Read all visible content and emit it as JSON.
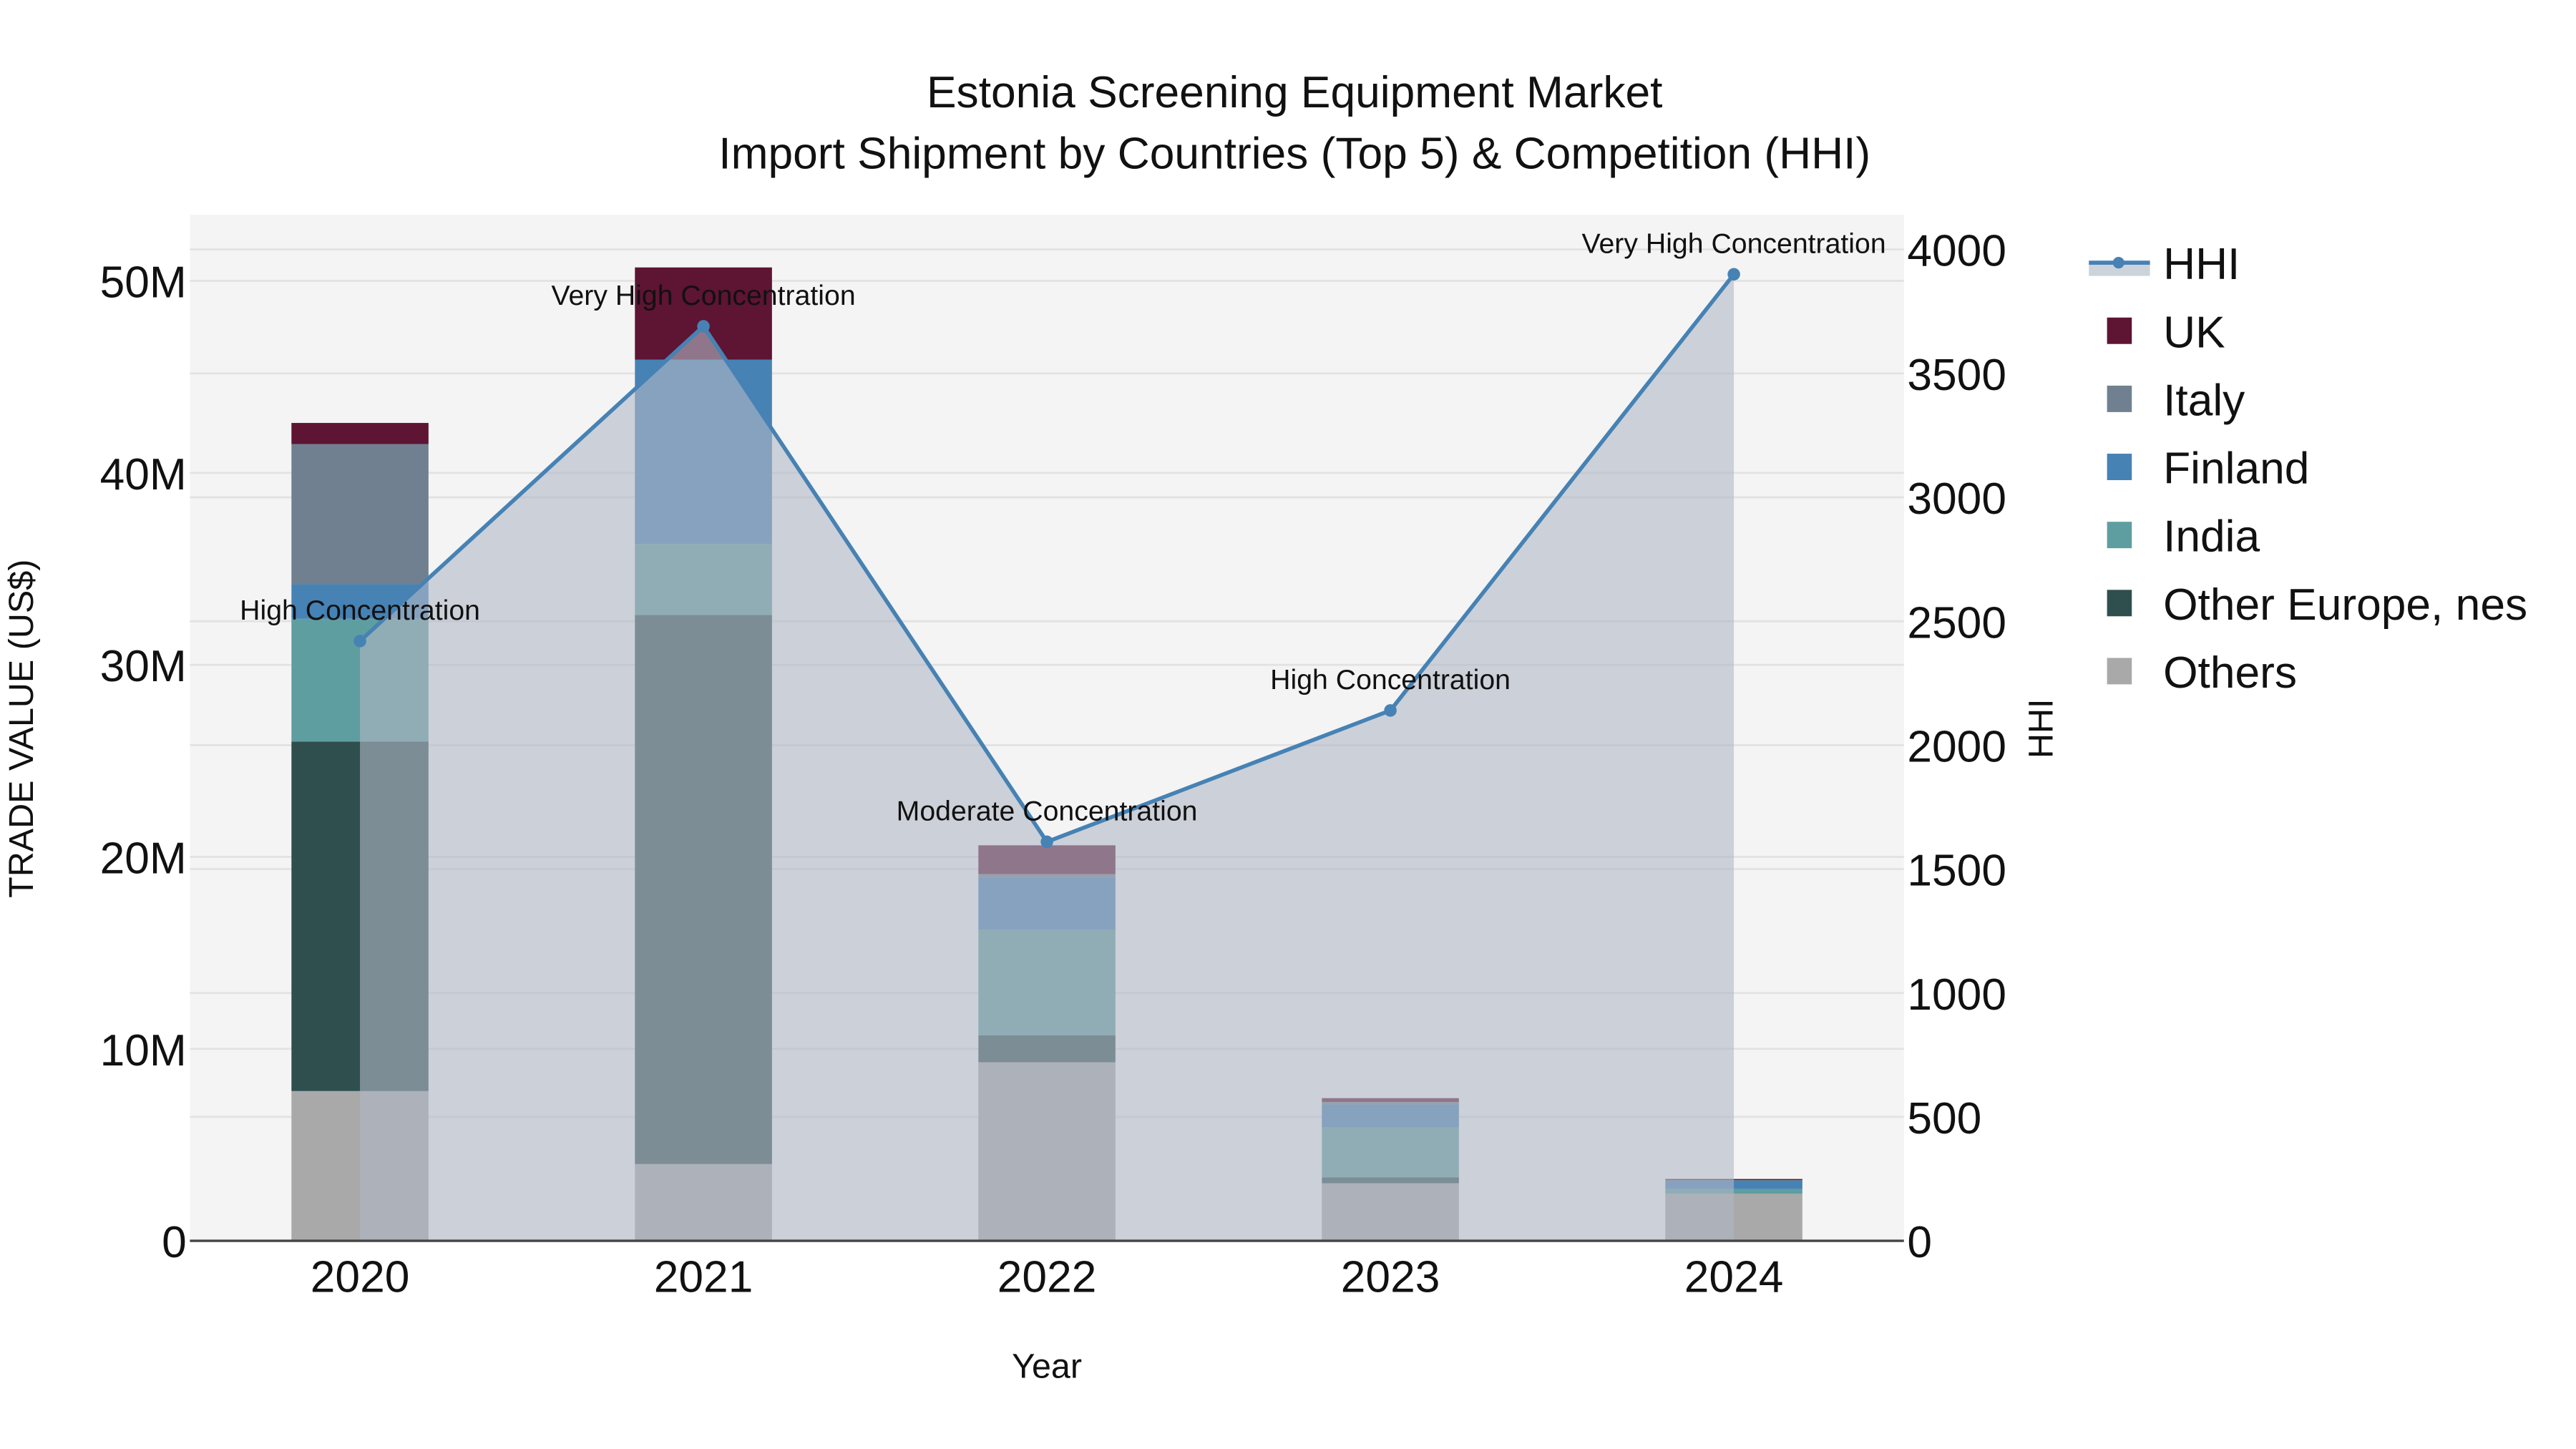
{
  "title": {
    "line1": "Estonia Screening Equipment Market",
    "line2": "Import Shipment by Countries (Top 5) & Competition (HHI)"
  },
  "axes": {
    "x_title": "Year",
    "y_left_title": "TRADE VALUE (US$)",
    "y_right_title": "HHI",
    "y_left_ticks": [
      "0",
      "10M",
      "20M",
      "30M",
      "40M",
      "50M"
    ],
    "y_right_ticks": [
      "0",
      "500",
      "1000",
      "1500",
      "2000",
      "2500",
      "3000",
      "3500",
      "4000"
    ],
    "x_ticks": [
      "2020",
      "2021",
      "2022",
      "2023",
      "2024"
    ]
  },
  "legend": [
    {
      "name": "HHI",
      "type": "line",
      "color": "#4682b4"
    },
    {
      "name": "UK",
      "type": "bar",
      "color": "#5e1433"
    },
    {
      "name": "Italy",
      "type": "bar",
      "color": "#708090"
    },
    {
      "name": "Finland",
      "type": "bar",
      "color": "#4682b4"
    },
    {
      "name": "India",
      "type": "bar",
      "color": "#5f9ea0"
    },
    {
      "name": "Other Europe, nes",
      "type": "bar",
      "color": "#2f4f4f"
    },
    {
      "name": "Others",
      "type": "bar",
      "color": "#a9a9a9"
    }
  ],
  "annotations": [
    {
      "year": "2020",
      "text": "High Concentration"
    },
    {
      "year": "2021",
      "text": "Very High Concentration"
    },
    {
      "year": "2022",
      "text": "Moderate Concentration"
    },
    {
      "year": "2023",
      "text": "High Concentration"
    },
    {
      "year": "2024",
      "text": "Very High Concentration"
    }
  ],
  "chart_data": {
    "type": "bar",
    "subtype": "stacked bar + line (secondary axis)",
    "title": "Estonia Screening Equipment Market — Import Shipment by Countries (Top 5) & Competition (HHI)",
    "xlabel": "Year",
    "ylabel": "TRADE VALUE (US$)",
    "y2label": "HHI",
    "categories": [
      "2020",
      "2021",
      "2022",
      "2023",
      "2024"
    ],
    "ylim": [
      0,
      53000000
    ],
    "y2lim": [
      0,
      4130
    ],
    "grid": true,
    "legend_position": "right",
    "series": [
      {
        "name": "Others",
        "color": "#a9a9a9",
        "values": [
          7800000,
          4000000,
          9300000,
          3000000,
          2450000
        ]
      },
      {
        "name": "Other Europe, nes",
        "color": "#2f4f4f",
        "values": [
          18200000,
          28600000,
          1400000,
          300000,
          0
        ]
      },
      {
        "name": "India",
        "color": "#5f9ea0",
        "values": [
          6400000,
          3700000,
          5500000,
          2600000,
          250000
        ]
      },
      {
        "name": "Finland",
        "color": "#4682b4",
        "values": [
          1800000,
          9600000,
          2700000,
          1200000,
          450000
        ]
      },
      {
        "name": "Italy",
        "color": "#708090",
        "values": [
          7300000,
          0,
          200000,
          130000,
          20000
        ]
      },
      {
        "name": "UK",
        "color": "#5e1433",
        "values": [
          1100000,
          4800000,
          1500000,
          200000,
          50000
        ]
      }
    ],
    "line_series": {
      "name": "HHI",
      "axis": "right",
      "color": "#4682b4",
      "values": [
        2420,
        3690,
        1610,
        2140,
        3900
      ],
      "labels": [
        "High Concentration",
        "Very High Concentration",
        "Moderate Concentration",
        "High Concentration",
        "Very High Concentration"
      ]
    }
  }
}
